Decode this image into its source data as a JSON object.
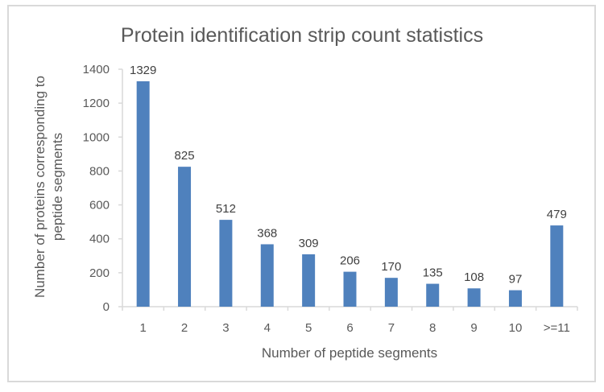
{
  "chart_data": {
    "type": "bar",
    "title": "Protein identification strip count statistics",
    "xlabel": "Number of peptide segments",
    "ylabel_lines": [
      "Number of proteins corresponding to",
      "peptide segments"
    ],
    "categories": [
      "1",
      "2",
      "3",
      "4",
      "5",
      "6",
      "7",
      "8",
      "9",
      "10",
      ">=11"
    ],
    "values": [
      1329,
      825,
      512,
      368,
      309,
      206,
      170,
      135,
      108,
      97,
      479
    ],
    "ylim": [
      0,
      1400
    ],
    "yticks": [
      0,
      200,
      400,
      600,
      800,
      1000,
      1200,
      1400
    ],
    "grid": false,
    "legend": "none",
    "bar_color": "#4f81bd",
    "axis_color": "#d9d9d9"
  }
}
